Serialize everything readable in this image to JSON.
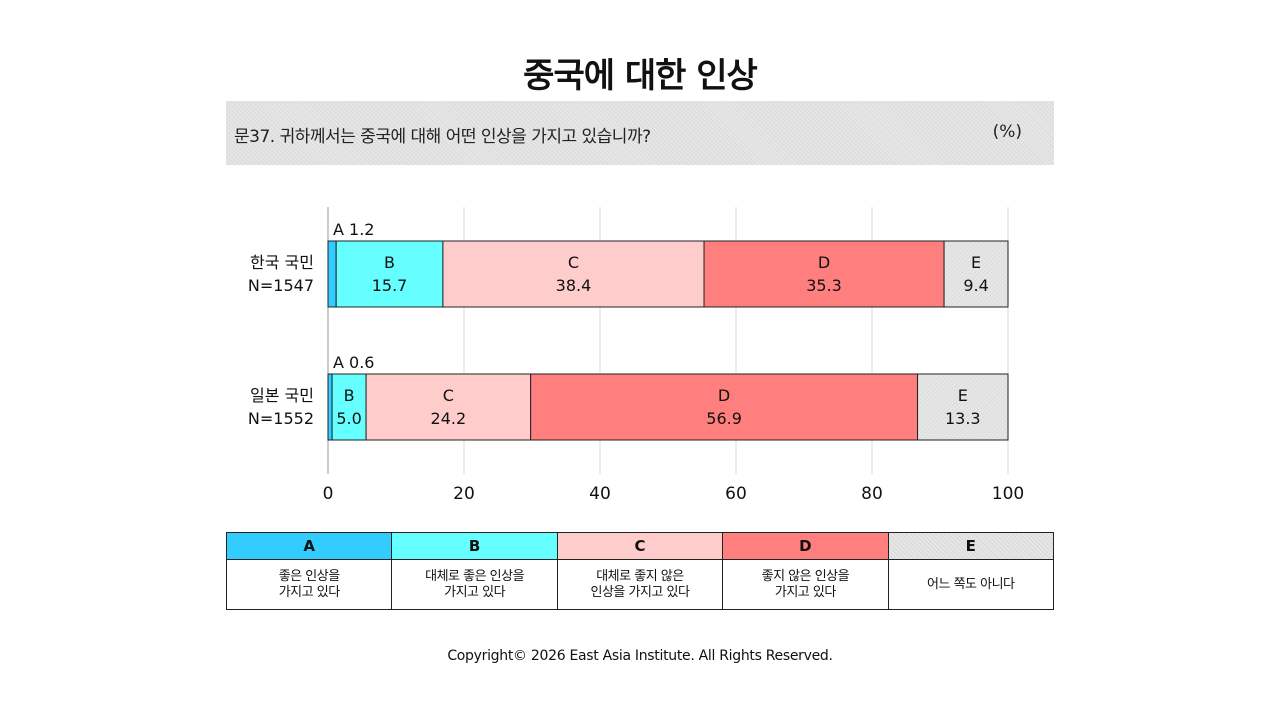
{
  "title": "중국에 대한 인상",
  "question": "문37. 귀하께서는 중국에 대해 어떤 인상을 가지고 있습니까?",
  "unit": "(%)",
  "colors": {
    "A": "#33ccff",
    "B": "#66ffff",
    "C": "#ffcccc",
    "D": "#ff7f7f",
    "E": "#e6e6e6"
  },
  "chart_data": {
    "type": "bar",
    "orientation": "horizontal-stacked",
    "xlim": [
      0,
      100
    ],
    "xticks": [
      0,
      20,
      40,
      60,
      80,
      100
    ],
    "grid": true,
    "rows": [
      {
        "label_line1": "한국 국민",
        "label_line2": "N=1547",
        "segments": [
          {
            "key": "A",
            "value": 1.2,
            "label": "A 1.2"
          },
          {
            "key": "B",
            "value": 15.7
          },
          {
            "key": "C",
            "value": 38.4
          },
          {
            "key": "D",
            "value": 35.3
          },
          {
            "key": "E",
            "value": 9.4
          }
        ]
      },
      {
        "label_line1": "일본 국민",
        "label_line2": "N=1552",
        "segments": [
          {
            "key": "A",
            "value": 0.6,
            "label": "A 0.6"
          },
          {
            "key": "B",
            "value": 5.0
          },
          {
            "key": "C",
            "value": 24.2
          },
          {
            "key": "D",
            "value": 56.9
          },
          {
            "key": "E",
            "value": 13.3
          }
        ]
      }
    ]
  },
  "legend": [
    {
      "key": "A",
      "text": "좋은 인상을\n가지고 있다"
    },
    {
      "key": "B",
      "text": "대체로 좋은 인상을\n가지고 있다"
    },
    {
      "key": "C",
      "text": "대체로 좋지 않은\n인상을 가지고 있다"
    },
    {
      "key": "D",
      "text": "좋지 않은 인상을\n가지고 있다"
    },
    {
      "key": "E",
      "text": "어느 쪽도 아니다"
    }
  ],
  "copyright": "Copyright© 2026 East Asia Institute. All Rights Reserved."
}
